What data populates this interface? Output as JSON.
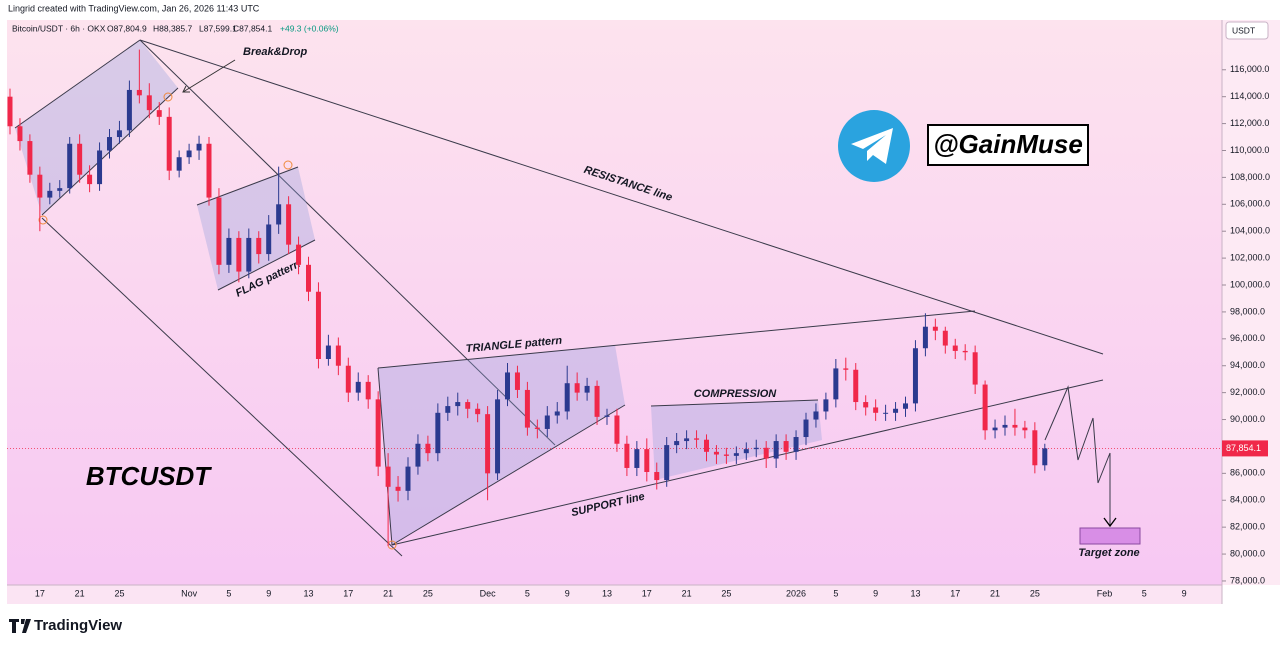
{
  "header": {
    "credit": "Lingrid created with TradingView.com, Jan 26, 2026 11:43 UTC"
  },
  "legend_bar": {
    "symbol": "Bitcoin/USDT · 6h · OKX",
    "open": "O87,804.9",
    "high": "H88,385.7",
    "low": "L87,599.1",
    "close": "C87,854.1",
    "change": "+49.3 (+0.06%)"
  },
  "footer": {
    "brand": "TradingView"
  },
  "chart_data": {
    "type": "candlestick",
    "currency": "USDT",
    "title": "BTCUSDT",
    "annotations": {
      "break": "Break&Drop",
      "resistance": "RESISTANCE line",
      "flag": "FLAG pattern",
      "triangle": "TRIANGLE pattern",
      "compression": "COMPRESSION",
      "support": "SUPPORT line",
      "target": "Target zone",
      "handle": "@GainMuse"
    },
    "up_color": "#2b3a8f",
    "down_color": "#f0284a",
    "categories": [
      null,
      null,
      null,
      "17",
      null,
      null,
      null,
      "21",
      null,
      null,
      null,
      "25",
      null,
      null,
      null,
      null,
      null,
      null,
      "Nov",
      null,
      null,
      null,
      "5",
      null,
      null,
      null,
      "9",
      null,
      null,
      null,
      "13",
      null,
      null,
      null,
      "17",
      null,
      null,
      null,
      "21",
      null,
      null,
      null,
      "25",
      null,
      null,
      null,
      null,
      null,
      "Dec",
      null,
      null,
      null,
      "5",
      null,
      null,
      null,
      "9",
      null,
      null,
      null,
      "13",
      null,
      null,
      null,
      "17",
      null,
      null,
      null,
      "21",
      null,
      null,
      null,
      "25",
      null,
      null,
      null,
      null,
      null,
      null,
      "2026",
      null,
      null,
      null,
      "5",
      null,
      null,
      null,
      "9",
      null,
      null,
      null,
      "13",
      null,
      null,
      null,
      "17",
      null,
      null,
      null,
      "21",
      null,
      null,
      null,
      "25",
      null,
      null,
      null,
      null,
      null,
      null,
      "Feb",
      null,
      null,
      null,
      "5",
      null,
      null,
      null,
      "9",
      null,
      null,
      null
    ],
    "open": [
      114000,
      111800,
      110700,
      108200,
      106500,
      107000,
      107200,
      110500,
      108200,
      107500,
      110000,
      111000,
      111500,
      114500,
      114100,
      113000,
      112500,
      108500,
      109500,
      110000,
      110500,
      106500,
      101500,
      103500,
      101000,
      103500,
      102300,
      104500,
      106000,
      103000,
      101500,
      99500,
      94500,
      95500,
      94000,
      92000,
      92800,
      91500,
      86500,
      85000,
      84700,
      86500,
      88200,
      87500,
      90500,
      91000,
      91300,
      90800,
      90400,
      86000,
      91500,
      93500,
      92200,
      89400,
      89300,
      90300,
      90600,
      92700,
      92000,
      92500,
      90200,
      90300,
      88200,
      86400,
      87800,
      86100,
      85500,
      88100,
      88400,
      88600,
      88500,
      87600,
      87400,
      87300,
      87500,
      87800,
      87900,
      87100,
      88400,
      87600,
      88700,
      90000,
      90600,
      91500,
      93800,
      93700,
      91300,
      90900,
      90500,
      90500,
      90800,
      91200,
      95300,
      96900,
      96600,
      95500,
      95100,
      95000,
      92600,
      89200,
      89400,
      89600,
      89400,
      89200,
      86600,
      null,
      null,
      null,
      null,
      null,
      null,
      null,
      null,
      null,
      null,
      null,
      null,
      null,
      null,
      null,
      null,
      null
    ],
    "high": [
      114600,
      112400,
      111200,
      108800,
      107600,
      107800,
      111000,
      111200,
      108900,
      110600,
      111600,
      112200,
      115200,
      117500,
      115000,
      113600,
      113200,
      110000,
      110500,
      111100,
      111000,
      107200,
      104200,
      104000,
      104200,
      104000,
      105200,
      108800,
      106600,
      103600,
      102100,
      100200,
      96300,
      96100,
      94600,
      93500,
      93300,
      92100,
      87500,
      85800,
      87200,
      88900,
      88800,
      91200,
      91700,
      92000,
      91500,
      91200,
      91000,
      92200,
      94200,
      94000,
      92800,
      90000,
      91000,
      91300,
      94000,
      93500,
      93100,
      92900,
      90800,
      90800,
      88800,
      88400,
      88600,
      86800,
      88700,
      89000,
      89200,
      89200,
      88900,
      88100,
      87900,
      88000,
      88300,
      88500,
      88400,
      88900,
      88900,
      89200,
      90500,
      91200,
      92000,
      94500,
      94600,
      94200,
      91800,
      91500,
      91100,
      91300,
      91700,
      95900,
      97900,
      97500,
      96900,
      96000,
      95600,
      95500,
      92900,
      90000,
      90300,
      90800,
      89900,
      89800,
      88200,
      null,
      null,
      null,
      null,
      null,
      null,
      null,
      null,
      null,
      null,
      null,
      null,
      null,
      null,
      null,
      null,
      null
    ],
    "low": [
      111200,
      110000,
      107600,
      104000,
      106000,
      106500,
      106800,
      107600,
      106900,
      107000,
      109400,
      110500,
      111000,
      113500,
      112400,
      111900,
      107800,
      108000,
      109000,
      109300,
      105900,
      100800,
      100900,
      100200,
      100500,
      101600,
      101800,
      103800,
      102300,
      100800,
      98800,
      93800,
      94000,
      93300,
      91300,
      91400,
      90800,
      85800,
      80600,
      83900,
      84000,
      85900,
      86900,
      86900,
      89900,
      90300,
      90100,
      89800,
      84000,
      85500,
      91000,
      91600,
      88800,
      88600,
      88700,
      89700,
      90000,
      91400,
      91400,
      89600,
      89600,
      87600,
      85800,
      85800,
      85400,
      84800,
      85000,
      87500,
      87800,
      87900,
      86900,
      86700,
      86700,
      86700,
      87000,
      87200,
      86400,
      86400,
      87000,
      87000,
      88100,
      89400,
      90000,
      90900,
      92900,
      90700,
      90300,
      89900,
      89900,
      89900,
      90200,
      90600,
      94700,
      95900,
      94900,
      94500,
      94400,
      91900,
      88500,
      88600,
      88800,
      88800,
      88600,
      86000,
      86200,
      null,
      null,
      null,
      null,
      null,
      null,
      null,
      null,
      null,
      null,
      null,
      null,
      null,
      null,
      null,
      null,
      null
    ],
    "close": [
      111800,
      110700,
      108200,
      106500,
      107000,
      107200,
      110500,
      108200,
      107500,
      110000,
      111000,
      111500,
      114500,
      114100,
      113000,
      112500,
      108500,
      109500,
      110000,
      110500,
      106500,
      101500,
      103500,
      101000,
      103500,
      102300,
      104500,
      106000,
      103000,
      101500,
      99500,
      94500,
      95500,
      94000,
      92000,
      92800,
      91500,
      86500,
      85000,
      84700,
      86500,
      88200,
      87500,
      90500,
      91000,
      91300,
      90800,
      90400,
      86000,
      91500,
      93500,
      92200,
      89400,
      89300,
      90300,
      90600,
      92700,
      92000,
      92500,
      90200,
      90300,
      88200,
      86400,
      87800,
      86100,
      85500,
      88100,
      88400,
      88600,
      88500,
      87600,
      87400,
      87300,
      87500,
      87800,
      87900,
      87100,
      88400,
      87600,
      88700,
      90000,
      90600,
      91500,
      93800,
      93700,
      91300,
      90900,
      90500,
      90500,
      90800,
      91200,
      95300,
      96900,
      96600,
      95500,
      95100,
      95000,
      92600,
      89200,
      89400,
      89600,
      89400,
      89200,
      86600,
      87854.1,
      null,
      null,
      null,
      null,
      null,
      null,
      null,
      null,
      null,
      null,
      null,
      null,
      null,
      null,
      null,
      null,
      null
    ],
    "last_price": {
      "value": 87854.1,
      "label": "87,854.1"
    },
    "ylim": [
      77700,
      119700
    ],
    "yticks": [
      {
        "value": 78000,
        "label": "78,000.0"
      },
      {
        "value": 80000,
        "label": "80,000.0"
      },
      {
        "value": 82000,
        "label": "82,000.0"
      },
      {
        "value": 84000,
        "label": "84,000.0"
      },
      {
        "value": 86000,
        "label": "86,000.0"
      },
      {
        "value": 88000,
        "label": "88,000.0"
      },
      {
        "value": 90000,
        "label": "90,000.0"
      },
      {
        "value": 92000,
        "label": "92,000.0"
      },
      {
        "value": 94000,
        "label": "94,000.0"
      },
      {
        "value": 96000,
        "label": "96,000.0"
      },
      {
        "value": 98000,
        "label": "98,000.0"
      },
      {
        "value": 100000,
        "label": "100,000.0"
      },
      {
        "value": 102000,
        "label": "102,000.0"
      },
      {
        "value": 104000,
        "label": "104,000.0"
      },
      {
        "value": 106000,
        "label": "106,000.0"
      },
      {
        "value": 108000,
        "label": "108,000.0"
      },
      {
        "value": 110000,
        "label": "110,000.0"
      },
      {
        "value": 112000,
        "label": "112,000.0"
      },
      {
        "value": 114000,
        "label": "114,000.0"
      },
      {
        "value": 116000,
        "label": "116,000.0"
      }
    ],
    "grid": false
  }
}
